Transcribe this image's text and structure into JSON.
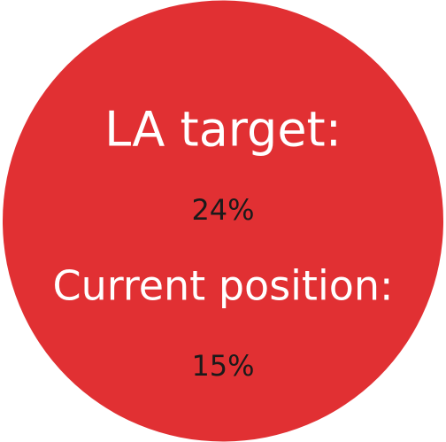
{
  "badge": {
    "target_label": "LA target:",
    "target_value": "24%",
    "current_label": "Current position:",
    "current_value": "15%"
  }
}
